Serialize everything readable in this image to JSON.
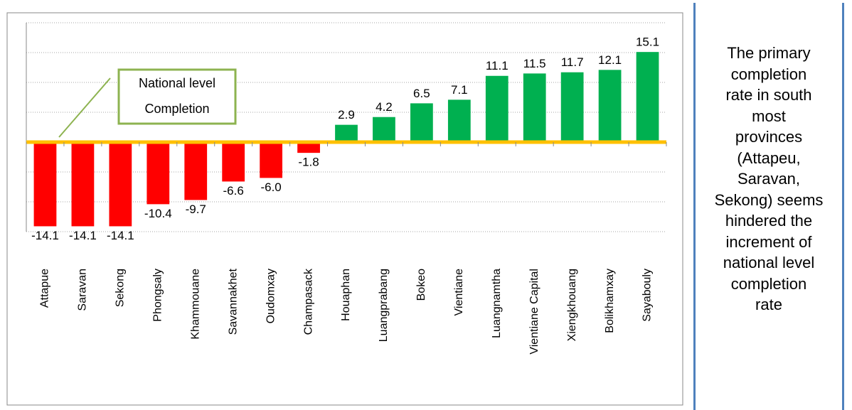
{
  "chart_data": {
    "type": "bar",
    "categories": [
      "Attapue",
      "Saravan",
      "Sekong",
      "Phongsaly",
      "Khammouane",
      "Savannakhet",
      "Oudomxay",
      "Champasack",
      "Houaphan",
      "Luangprabang",
      "Bokeo",
      "Vientiane",
      "Luangnamtha",
      "Vientiane Capital",
      "Xiengkhouang",
      "Bolikhamxay",
      "Sayabouly"
    ],
    "values": [
      -14.1,
      -14.1,
      -14.1,
      -10.4,
      -9.7,
      -6.6,
      -6.0,
      -1.8,
      2.9,
      4.2,
      6.5,
      7.1,
      11.1,
      11.5,
      11.7,
      12.1,
      15.1
    ],
    "value_labels": [
      "-14.1",
      "-14.1",
      "-14.1",
      "-10.4",
      "-9.7",
      "-6.6",
      "-6.0",
      "-1.8",
      "2.9",
      "4.2",
      "6.5",
      "7.1",
      "11.1",
      "11.5",
      "11.7",
      "12.1",
      "15.1"
    ],
    "color_negative": "#ff0000",
    "color_positive": "#00b050",
    "ylim": [
      -15,
      20
    ],
    "yticks": [
      -15,
      -10,
      -5,
      0,
      5,
      10,
      15,
      20
    ],
    "grid": true,
    "reference_line_color": "#ffc000",
    "annotation": "National level Completion",
    "annotation_color": "#8db350"
  },
  "side_note": {
    "lines": [
      "The primary",
      "completion",
      "rate in south",
      "most",
      "provinces",
      "(Attapeu,",
      "Saravan,",
      "Sekong) seems",
      "hindered the",
      "increment of",
      "national level",
      "completion",
      "rate"
    ]
  }
}
